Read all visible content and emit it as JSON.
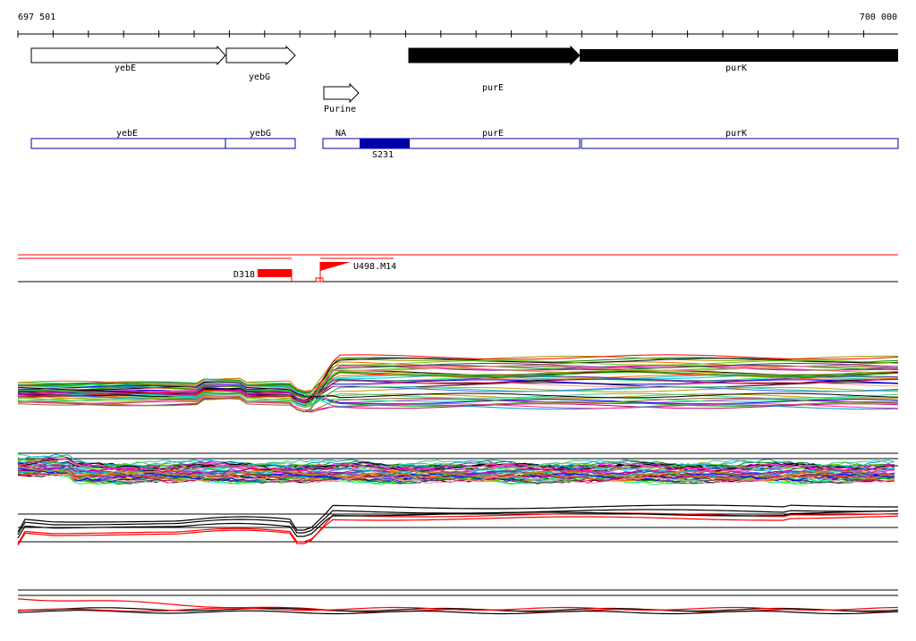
{
  "ruler": {
    "start_label": "697 501",
    "end_label": "700 000"
  },
  "genes": [
    {
      "name": "yebE",
      "strand": "forward",
      "fill": "#ffffff"
    },
    {
      "name": "yebG",
      "strand": "forward",
      "fill": "#ffffff"
    },
    {
      "name": "purE",
      "strand": "forward",
      "fill": "#000000"
    },
    {
      "name": "purK",
      "strand": "forward",
      "fill": "#000000"
    }
  ],
  "promoter": {
    "label": "Purine"
  },
  "transcripts": [
    {
      "label": "yebE"
    },
    {
      "label": "yebG"
    },
    {
      "label": "NA"
    },
    {
      "label": "purE"
    },
    {
      "label": "purK"
    }
  ],
  "highlight": {
    "label": "S231",
    "color": "#0000aa"
  },
  "features": [
    {
      "label": "D318",
      "color": "#ff0000"
    },
    {
      "label": "U498.M14",
      "color": "#ff0000"
    }
  ],
  "colors": {
    "transcript_outline": "#0000aa",
    "feature_line": "#ff0000",
    "track_line": "#000000"
  },
  "expression_tracks": [
    {
      "name": "expression-track-1"
    },
    {
      "name": "expression-track-2"
    },
    {
      "name": "expression-track-3"
    },
    {
      "name": "expression-track-4"
    }
  ]
}
